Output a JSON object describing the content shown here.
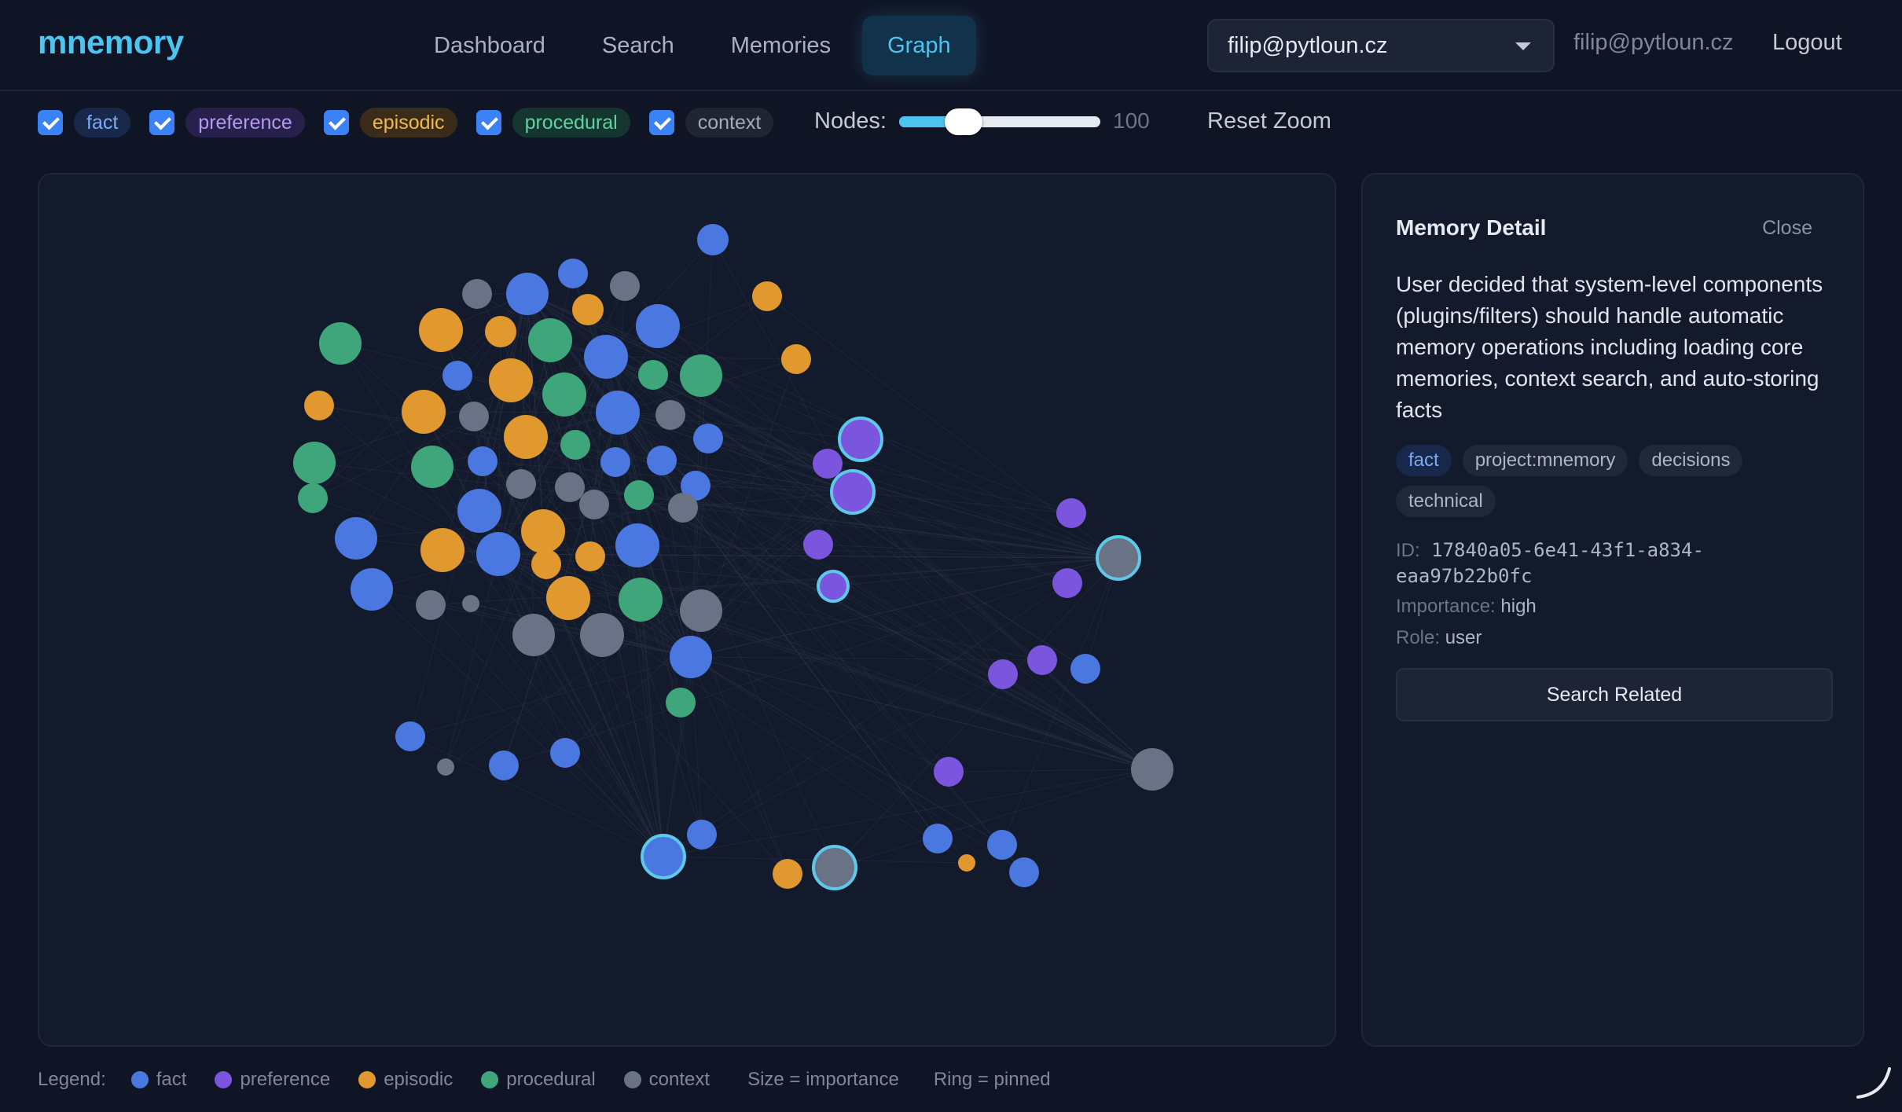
{
  "header": {
    "logo": "mnemory",
    "nav": [
      {
        "label": "Dashboard",
        "active": false
      },
      {
        "label": "Search",
        "active": false
      },
      {
        "label": "Memories",
        "active": false
      },
      {
        "label": "Graph",
        "active": true
      }
    ],
    "user_select_value": "filip@pytloun.cz",
    "user_email": "filip@pytloun.cz",
    "logout_label": "Logout"
  },
  "filters": {
    "types": [
      {
        "label": "fact",
        "checked": true,
        "color": "#3b82f6",
        "bg": "#18284a",
        "fg": "#7eaaf5"
      },
      {
        "label": "preference",
        "checked": true,
        "color": "#8b5cf6",
        "bg": "#26204a",
        "fg": "#b59af5"
      },
      {
        "label": "episodic",
        "checked": true,
        "color": "#f59e0b",
        "bg": "#3a2c18",
        "fg": "#f2b84b"
      },
      {
        "label": "procedural",
        "checked": true,
        "color": "#10b981",
        "bg": "#15362e",
        "fg": "#5ed3a2"
      },
      {
        "label": "context",
        "checked": true,
        "color": "#6b7280",
        "bg": "#1f2533",
        "fg": "#a3aab8"
      }
    ],
    "nodes_label": "Nodes:",
    "nodes_value": "100",
    "nodes_fraction": 0.32,
    "reset_zoom_label": "Reset Zoom"
  },
  "graph": {
    "type_colors": {
      "fact": "#4a78e0",
      "preference": "#7c55de",
      "episodic": "#e0982f",
      "procedural": "#3fa57a",
      "context": "#6a7386"
    },
    "pinned_ring_color": "#5cc8ea",
    "edge_color": "#2b3347"
  },
  "detail": {
    "title": "Memory Detail",
    "close_label": "Close",
    "text": "User decided that system-level components (plugins/filters) should handle automatic memory operations including loading core memories, context search, and auto-storing facts",
    "tags": [
      {
        "label": "fact",
        "primary": true
      },
      {
        "label": "project:mnemory",
        "primary": false
      },
      {
        "label": "decisions",
        "primary": false
      },
      {
        "label": "technical",
        "primary": false
      }
    ],
    "id_label": "ID:",
    "id_value": "17840a05-6e41-43f1-a834-eaa97b22b0fc",
    "importance_label": "Importance:",
    "importance_value": "high",
    "role_label": "Role:",
    "role_value": "user",
    "search_related_label": "Search Related"
  },
  "legend": {
    "label": "Legend:",
    "items": [
      {
        "label": "fact",
        "color": "#4a78e0"
      },
      {
        "label": "preference",
        "color": "#7c55de"
      },
      {
        "label": "episodic",
        "color": "#e0982f"
      },
      {
        "label": "procedural",
        "color": "#3fa57a"
      },
      {
        "label": "context",
        "color": "#6a7386"
      }
    ],
    "size_note": "Size = importance",
    "ring_note": "Ring = pinned"
  }
}
